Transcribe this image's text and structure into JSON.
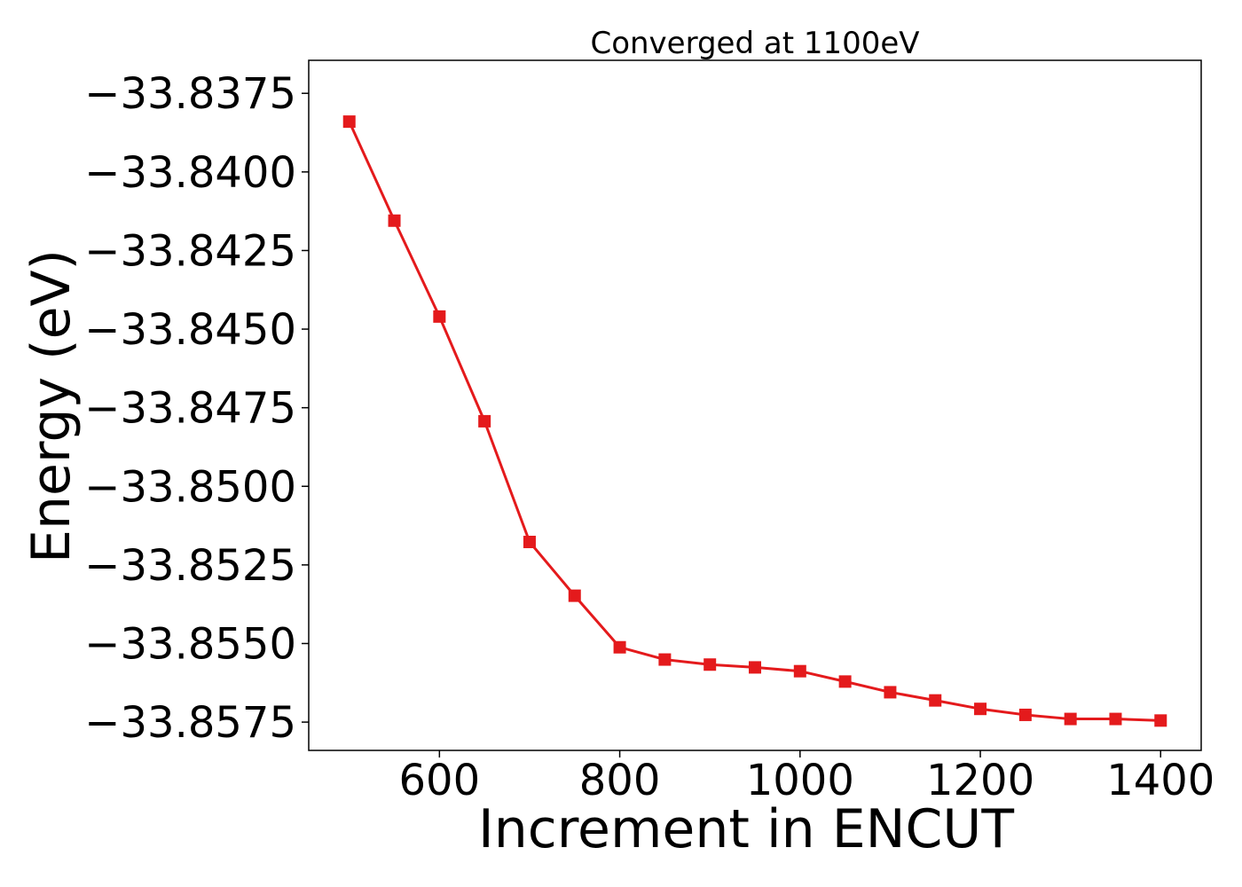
{
  "chart_data": {
    "type": "line",
    "title": "Converged at 1100eV",
    "xlabel": "Increment in ENCUT",
    "ylabel": "Energy (eV)",
    "xlim": [
      455,
      1445
    ],
    "ylim": [
      -33.8584,
      -33.83645
    ],
    "xticks": [
      600,
      800,
      1000,
      1200,
      1400
    ],
    "xtick_labels": [
      "600",
      "800",
      "1000",
      "1200",
      "1400"
    ],
    "yticks": [
      -33.8375,
      -33.84,
      -33.8425,
      -33.845,
      -33.8475,
      -33.85,
      -33.8525,
      -33.855,
      -33.8575
    ],
    "ytick_labels": [
      "−33.8375",
      "−33.8400",
      "−33.8425",
      "−33.8450",
      "−33.8475",
      "−33.8500",
      "−33.8525",
      "−33.8550",
      "−33.8575"
    ],
    "grid": false,
    "series": [
      {
        "color": "#e41a1c",
        "marker": "square",
        "x": [
          500,
          550,
          600,
          650,
          700,
          750,
          800,
          850,
          900,
          950,
          1000,
          1050,
          1100,
          1150,
          1200,
          1250,
          1300,
          1350,
          1400
        ],
        "y": [
          -33.8384,
          -33.84155,
          -33.8446,
          -33.84793,
          -33.85177,
          -33.85348,
          -33.85512,
          -33.85551,
          -33.85567,
          -33.85576,
          -33.85588,
          -33.85621,
          -33.85655,
          -33.85681,
          -33.85708,
          -33.85727,
          -33.8574,
          -33.8574,
          -33.85745
        ]
      }
    ]
  }
}
